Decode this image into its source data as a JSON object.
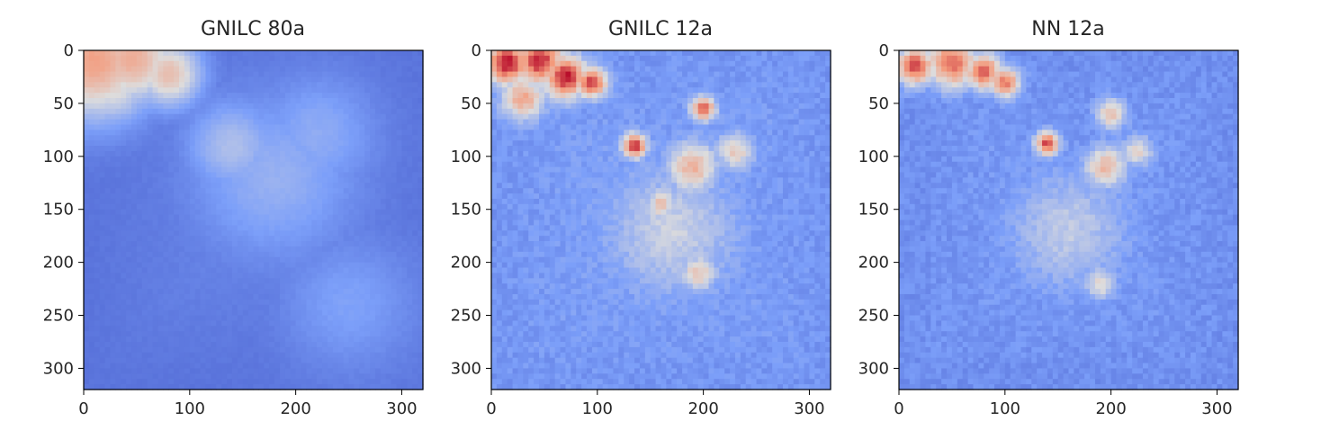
{
  "chart_data": [
    {
      "type": "heatmap",
      "title": "GNILC 80a",
      "colormap": "coolwarm",
      "xlim": [
        0,
        320
      ],
      "ylim": [
        320,
        0
      ],
      "xticks": [
        0,
        100,
        200,
        300
      ],
      "yticks": [
        0,
        50,
        100,
        150,
        200,
        250,
        300
      ],
      "xtick_labels": [
        "0",
        "100",
        "200",
        "300"
      ],
      "ytick_labels": [
        "0",
        "50",
        "100",
        "150",
        "200",
        "250",
        "300"
      ],
      "grid": false,
      "features": [
        {
          "x": 10,
          "y": 10,
          "level": 0.72,
          "spread": 38
        },
        {
          "x": 45,
          "y": 8,
          "level": 0.68,
          "spread": 30
        },
        {
          "x": 80,
          "y": 22,
          "level": 0.62,
          "spread": 22
        },
        {
          "x": 25,
          "y": 30,
          "level": 0.55,
          "spread": 28
        },
        {
          "x": 140,
          "y": 90,
          "level": 0.38,
          "spread": 30
        },
        {
          "x": 180,
          "y": 120,
          "level": 0.32,
          "spread": 55
        },
        {
          "x": 220,
          "y": 80,
          "level": 0.3,
          "spread": 40
        },
        {
          "x": 250,
          "y": 240,
          "level": 0.26,
          "spread": 45
        }
      ],
      "base_level": 0.12
    },
    {
      "type": "heatmap",
      "title": "GNILC 12a",
      "colormap": "coolwarm",
      "xlim": [
        0,
        320
      ],
      "ylim": [
        320,
        0
      ],
      "xticks": [
        0,
        100,
        200,
        300
      ],
      "yticks": [
        0,
        50,
        100,
        150,
        200,
        250,
        300
      ],
      "xtick_labels": [
        "0",
        "100",
        "200",
        "300"
      ],
      "ytick_labels": [
        "0",
        "50",
        "100",
        "150",
        "200",
        "250",
        "300"
      ],
      "grid": false,
      "features": [
        {
          "x": 15,
          "y": 12,
          "level": 0.98,
          "spread": 14
        },
        {
          "x": 45,
          "y": 10,
          "level": 0.95,
          "spread": 16
        },
        {
          "x": 70,
          "y": 25,
          "level": 0.97,
          "spread": 14
        },
        {
          "x": 95,
          "y": 30,
          "level": 0.92,
          "spread": 10
        },
        {
          "x": 30,
          "y": 45,
          "level": 0.7,
          "spread": 14
        },
        {
          "x": 135,
          "y": 90,
          "level": 0.95,
          "spread": 8
        },
        {
          "x": 200,
          "y": 55,
          "level": 0.85,
          "spread": 8
        },
        {
          "x": 190,
          "y": 110,
          "level": 0.66,
          "spread": 16
        },
        {
          "x": 160,
          "y": 145,
          "level": 0.6,
          "spread": 10
        },
        {
          "x": 195,
          "y": 210,
          "level": 0.58,
          "spread": 12
        },
        {
          "x": 230,
          "y": 95,
          "level": 0.58,
          "spread": 12
        },
        {
          "x": 170,
          "y": 170,
          "level": 0.45,
          "spread": 40
        }
      ],
      "base_level": 0.22
    },
    {
      "type": "heatmap",
      "title": "NN 12a",
      "colormap": "coolwarm",
      "xlim": [
        0,
        320
      ],
      "ylim": [
        320,
        0
      ],
      "xticks": [
        0,
        100,
        200,
        300
      ],
      "yticks": [
        0,
        50,
        100,
        150,
        200,
        250,
        300
      ],
      "xtick_labels": [
        "0",
        "100",
        "200",
        "300"
      ],
      "ytick_labels": [
        "0",
        "50",
        "100",
        "150",
        "200",
        "250",
        "300"
      ],
      "grid": false,
      "features": [
        {
          "x": 15,
          "y": 15,
          "level": 0.92,
          "spread": 12
        },
        {
          "x": 50,
          "y": 12,
          "level": 0.85,
          "spread": 16
        },
        {
          "x": 80,
          "y": 20,
          "level": 0.86,
          "spread": 12
        },
        {
          "x": 100,
          "y": 30,
          "level": 0.82,
          "spread": 10
        },
        {
          "x": 140,
          "y": 88,
          "level": 0.9,
          "spread": 8
        },
        {
          "x": 200,
          "y": 60,
          "level": 0.62,
          "spread": 10
        },
        {
          "x": 195,
          "y": 110,
          "level": 0.64,
          "spread": 14
        },
        {
          "x": 225,
          "y": 95,
          "level": 0.56,
          "spread": 10
        },
        {
          "x": 190,
          "y": 220,
          "level": 0.55,
          "spread": 10
        },
        {
          "x": 160,
          "y": 170,
          "level": 0.42,
          "spread": 38
        }
      ],
      "base_level": 0.2
    }
  ]
}
